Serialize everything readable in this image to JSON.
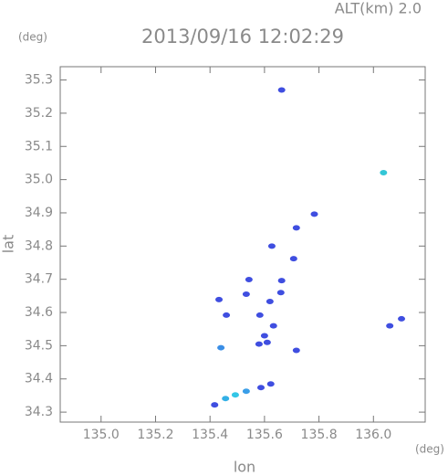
{
  "chart_data": {
    "type": "scatter",
    "title": "2013/09/16 12:02:29",
    "subtitle": "ALT(km) 2.0",
    "x_label": "lon",
    "y_label": "lat",
    "x_unit": "(deg)",
    "y_unit": "(deg)",
    "xlim": [
      134.85,
      136.19
    ],
    "ylim": [
      34.27,
      35.34
    ],
    "xticks": [
      {
        "value": 135,
        "label": "135.0"
      },
      135.2,
      135.4,
      135.6,
      135.8,
      {
        "value": 136,
        "label": "136.0"
      }
    ],
    "yticks": [
      34.3,
      34.4,
      34.5,
      34.6,
      34.7,
      34.8,
      34.9,
      {
        "value": 35,
        "label": "35.0"
      },
      35.1,
      35.2,
      35.3
    ],
    "x": [
      135.663,
      136.037,
      135.783,
      135.717,
      135.627,
      135.707,
      135.543,
      135.663,
      135.433,
      135.62,
      135.66,
      135.533,
      135.46,
      135.583,
      135.633,
      135.6,
      135.58,
      135.61,
      135.44,
      135.717,
      136.06,
      136.103,
      135.623,
      135.587,
      135.533,
      135.493,
      135.457,
      135.417
    ],
    "y": [
      35.27,
      35.021,
      34.896,
      34.855,
      34.8,
      34.762,
      34.699,
      34.696,
      34.639,
      34.633,
      34.66,
      34.655,
      34.592,
      34.592,
      34.56,
      34.53,
      34.505,
      34.51,
      34.494,
      34.486,
      34.56,
      34.581,
      34.385,
      34.374,
      34.363,
      34.352,
      34.341,
      34.322
    ],
    "colors": [
      "#3f4ee0",
      "#33c6d6",
      "#3f4ee0",
      "#3f4ee0",
      "#3f4ee0",
      "#3f4ee0",
      "#3f4ee0",
      "#3f4ee0",
      "#3f4ee0",
      "#3f4ee0",
      "#3f4ee0",
      "#3f4ee0",
      "#3f4ee0",
      "#3f4ee0",
      "#3f4ee0",
      "#3f4ee0",
      "#3f4ee0",
      "#3f4ee0",
      "#3a8ee6",
      "#3f4ee0",
      "#3f4ee0",
      "#3f4ee0",
      "#3f4ee0",
      "#3f4ee0",
      "#3a9ee8",
      "#33c6e6",
      "#33b0e6",
      "#3f4ee0"
    ]
  }
}
